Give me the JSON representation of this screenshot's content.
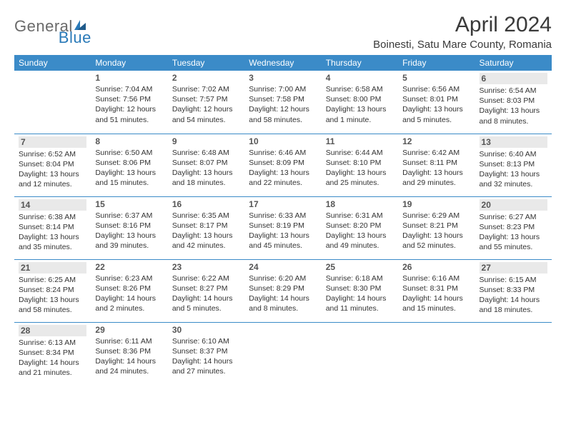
{
  "brand": {
    "part1": "General",
    "part2": "Blue"
  },
  "title": "April 2024",
  "location": "Boinesti, Satu Mare County, Romania",
  "day_headers": [
    "Sunday",
    "Monday",
    "Tuesday",
    "Wednesday",
    "Thursday",
    "Friday",
    "Saturday"
  ],
  "colors": {
    "header_bg": "#3b8bc8",
    "header_fg": "#ffffff",
    "rule": "#3b8bc8",
    "brand_gray": "#6a6a6a",
    "brand_blue": "#2a7ab8",
    "weekend_bg": "#e9e9e9",
    "text": "#333333"
  },
  "weeks": [
    [
      {
        "n": "",
        "sr": "",
        "ss": "",
        "dl": ""
      },
      {
        "n": "1",
        "sr": "Sunrise: 7:04 AM",
        "ss": "Sunset: 7:56 PM",
        "dl": "Daylight: 12 hours and 51 minutes."
      },
      {
        "n": "2",
        "sr": "Sunrise: 7:02 AM",
        "ss": "Sunset: 7:57 PM",
        "dl": "Daylight: 12 hours and 54 minutes."
      },
      {
        "n": "3",
        "sr": "Sunrise: 7:00 AM",
        "ss": "Sunset: 7:58 PM",
        "dl": "Daylight: 12 hours and 58 minutes."
      },
      {
        "n": "4",
        "sr": "Sunrise: 6:58 AM",
        "ss": "Sunset: 8:00 PM",
        "dl": "Daylight: 13 hours and 1 minute."
      },
      {
        "n": "5",
        "sr": "Sunrise: 6:56 AM",
        "ss": "Sunset: 8:01 PM",
        "dl": "Daylight: 13 hours and 5 minutes."
      },
      {
        "n": "6",
        "sr": "Sunrise: 6:54 AM",
        "ss": "Sunset: 8:03 PM",
        "dl": "Daylight: 13 hours and 8 minutes."
      }
    ],
    [
      {
        "n": "7",
        "sr": "Sunrise: 6:52 AM",
        "ss": "Sunset: 8:04 PM",
        "dl": "Daylight: 13 hours and 12 minutes."
      },
      {
        "n": "8",
        "sr": "Sunrise: 6:50 AM",
        "ss": "Sunset: 8:06 PM",
        "dl": "Daylight: 13 hours and 15 minutes."
      },
      {
        "n": "9",
        "sr": "Sunrise: 6:48 AM",
        "ss": "Sunset: 8:07 PM",
        "dl": "Daylight: 13 hours and 18 minutes."
      },
      {
        "n": "10",
        "sr": "Sunrise: 6:46 AM",
        "ss": "Sunset: 8:09 PM",
        "dl": "Daylight: 13 hours and 22 minutes."
      },
      {
        "n": "11",
        "sr": "Sunrise: 6:44 AM",
        "ss": "Sunset: 8:10 PM",
        "dl": "Daylight: 13 hours and 25 minutes."
      },
      {
        "n": "12",
        "sr": "Sunrise: 6:42 AM",
        "ss": "Sunset: 8:11 PM",
        "dl": "Daylight: 13 hours and 29 minutes."
      },
      {
        "n": "13",
        "sr": "Sunrise: 6:40 AM",
        "ss": "Sunset: 8:13 PM",
        "dl": "Daylight: 13 hours and 32 minutes."
      }
    ],
    [
      {
        "n": "14",
        "sr": "Sunrise: 6:38 AM",
        "ss": "Sunset: 8:14 PM",
        "dl": "Daylight: 13 hours and 35 minutes."
      },
      {
        "n": "15",
        "sr": "Sunrise: 6:37 AM",
        "ss": "Sunset: 8:16 PM",
        "dl": "Daylight: 13 hours and 39 minutes."
      },
      {
        "n": "16",
        "sr": "Sunrise: 6:35 AM",
        "ss": "Sunset: 8:17 PM",
        "dl": "Daylight: 13 hours and 42 minutes."
      },
      {
        "n": "17",
        "sr": "Sunrise: 6:33 AM",
        "ss": "Sunset: 8:19 PM",
        "dl": "Daylight: 13 hours and 45 minutes."
      },
      {
        "n": "18",
        "sr": "Sunrise: 6:31 AM",
        "ss": "Sunset: 8:20 PM",
        "dl": "Daylight: 13 hours and 49 minutes."
      },
      {
        "n": "19",
        "sr": "Sunrise: 6:29 AM",
        "ss": "Sunset: 8:21 PM",
        "dl": "Daylight: 13 hours and 52 minutes."
      },
      {
        "n": "20",
        "sr": "Sunrise: 6:27 AM",
        "ss": "Sunset: 8:23 PM",
        "dl": "Daylight: 13 hours and 55 minutes."
      }
    ],
    [
      {
        "n": "21",
        "sr": "Sunrise: 6:25 AM",
        "ss": "Sunset: 8:24 PM",
        "dl": "Daylight: 13 hours and 58 minutes."
      },
      {
        "n": "22",
        "sr": "Sunrise: 6:23 AM",
        "ss": "Sunset: 8:26 PM",
        "dl": "Daylight: 14 hours and 2 minutes."
      },
      {
        "n": "23",
        "sr": "Sunrise: 6:22 AM",
        "ss": "Sunset: 8:27 PM",
        "dl": "Daylight: 14 hours and 5 minutes."
      },
      {
        "n": "24",
        "sr": "Sunrise: 6:20 AM",
        "ss": "Sunset: 8:29 PM",
        "dl": "Daylight: 14 hours and 8 minutes."
      },
      {
        "n": "25",
        "sr": "Sunrise: 6:18 AM",
        "ss": "Sunset: 8:30 PM",
        "dl": "Daylight: 14 hours and 11 minutes."
      },
      {
        "n": "26",
        "sr": "Sunrise: 6:16 AM",
        "ss": "Sunset: 8:31 PM",
        "dl": "Daylight: 14 hours and 15 minutes."
      },
      {
        "n": "27",
        "sr": "Sunrise: 6:15 AM",
        "ss": "Sunset: 8:33 PM",
        "dl": "Daylight: 14 hours and 18 minutes."
      }
    ],
    [
      {
        "n": "28",
        "sr": "Sunrise: 6:13 AM",
        "ss": "Sunset: 8:34 PM",
        "dl": "Daylight: 14 hours and 21 minutes."
      },
      {
        "n": "29",
        "sr": "Sunrise: 6:11 AM",
        "ss": "Sunset: 8:36 PM",
        "dl": "Daylight: 14 hours and 24 minutes."
      },
      {
        "n": "30",
        "sr": "Sunrise: 6:10 AM",
        "ss": "Sunset: 8:37 PM",
        "dl": "Daylight: 14 hours and 27 minutes."
      },
      {
        "n": "",
        "sr": "",
        "ss": "",
        "dl": ""
      },
      {
        "n": "",
        "sr": "",
        "ss": "",
        "dl": ""
      },
      {
        "n": "",
        "sr": "",
        "ss": "",
        "dl": ""
      },
      {
        "n": "",
        "sr": "",
        "ss": "",
        "dl": ""
      }
    ]
  ]
}
